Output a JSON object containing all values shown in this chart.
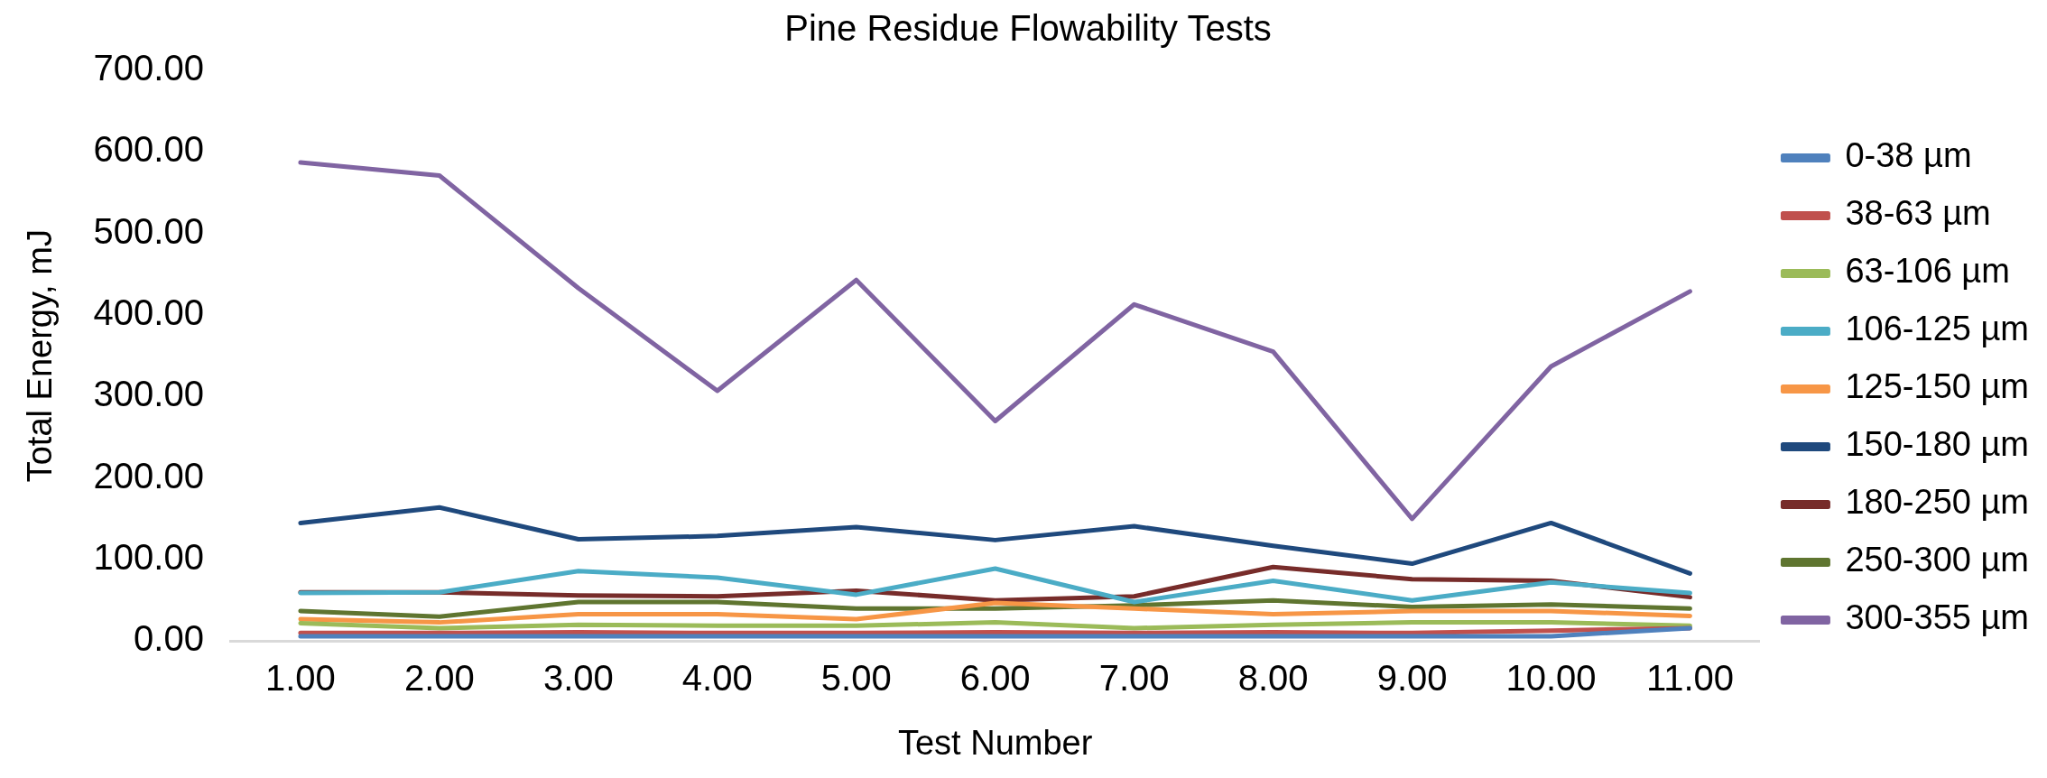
{
  "chart_data": {
    "type": "line",
    "title": "Pine Residue Flowability Tests",
    "xlabel": "Test Number",
    "ylabel": "Total Energy, mJ",
    "x": [
      1,
      2,
      3,
      4,
      5,
      6,
      7,
      8,
      9,
      10,
      11
    ],
    "xlim": [
      0.5,
      11.5
    ],
    "xticks": [
      {
        "value": 1,
        "label": "1.00"
      },
      {
        "value": 2,
        "label": "2.00"
      },
      {
        "value": 3,
        "label": "3.00"
      },
      {
        "value": 4,
        "label": "4.00"
      },
      {
        "value": 5,
        "label": "5.00"
      },
      {
        "value": 6,
        "label": "6.00"
      },
      {
        "value": 7,
        "label": "7.00"
      },
      {
        "value": 8,
        "label": "8.00"
      },
      {
        "value": 9,
        "label": "9.00"
      },
      {
        "value": 10,
        "label": "10.00"
      },
      {
        "value": 11,
        "label": "11.00"
      }
    ],
    "ylim": [
      0,
      700
    ],
    "yticks": [
      {
        "value": 0,
        "label": "0.00"
      },
      {
        "value": 100,
        "label": "100.00"
      },
      {
        "value": 200,
        "label": "200.00"
      },
      {
        "value": 300,
        "label": "300.00"
      },
      {
        "value": 400,
        "label": "400.00"
      },
      {
        "value": 500,
        "label": "500.00"
      },
      {
        "value": 600,
        "label": "600.00"
      },
      {
        "value": 700,
        "label": "700.00"
      }
    ],
    "grid": false,
    "legend": "right",
    "marker": "none",
    "line_style": "solid",
    "series": [
      {
        "name": "0-38 µm",
        "color": "#4f81bd",
        "values": [
          6,
          6,
          6,
          6,
          6,
          6,
          6,
          6,
          6,
          6,
          16
        ]
      },
      {
        "name": "38-63 µm",
        "color": "#c0504d",
        "values": [
          10,
          10,
          11,
          10,
          10,
          11,
          10,
          11,
          10,
          13,
          16
        ]
      },
      {
        "name": "63-106 µm",
        "color": "#9bbb59",
        "values": [
          22,
          16,
          20,
          19,
          19,
          23,
          16,
          20,
          23,
          23,
          19
        ]
      },
      {
        "name": "106-125 µm",
        "color": "#4bacc6",
        "values": [
          59,
          60,
          86,
          78,
          57,
          89,
          48,
          74,
          50,
          72,
          59
        ]
      },
      {
        "name": "125-150 µm",
        "color": "#f79646",
        "values": [
          27,
          23,
          33,
          33,
          27,
          47,
          40,
          33,
          37,
          37,
          31
        ]
      },
      {
        "name": "150-180 µm",
        "color": "#1f497d",
        "values": [
          145,
          164,
          125,
          129,
          140,
          124,
          141,
          117,
          95,
          145,
          83
        ]
      },
      {
        "name": "180-250 µm",
        "color": "#772c2a",
        "values": [
          60,
          60,
          56,
          55,
          62,
          50,
          55,
          91,
          76,
          74,
          54
        ]
      },
      {
        "name": "250-300 µm",
        "color": "#5f7530",
        "values": [
          37,
          30,
          48,
          48,
          40,
          40,
          44,
          50,
          42,
          45,
          40
        ]
      },
      {
        "name": "300-355 µm",
        "color": "#8064a2",
        "values": [
          587,
          571,
          433,
          307,
          443,
          270,
          413,
          355,
          150,
          337,
          429
        ]
      }
    ]
  }
}
